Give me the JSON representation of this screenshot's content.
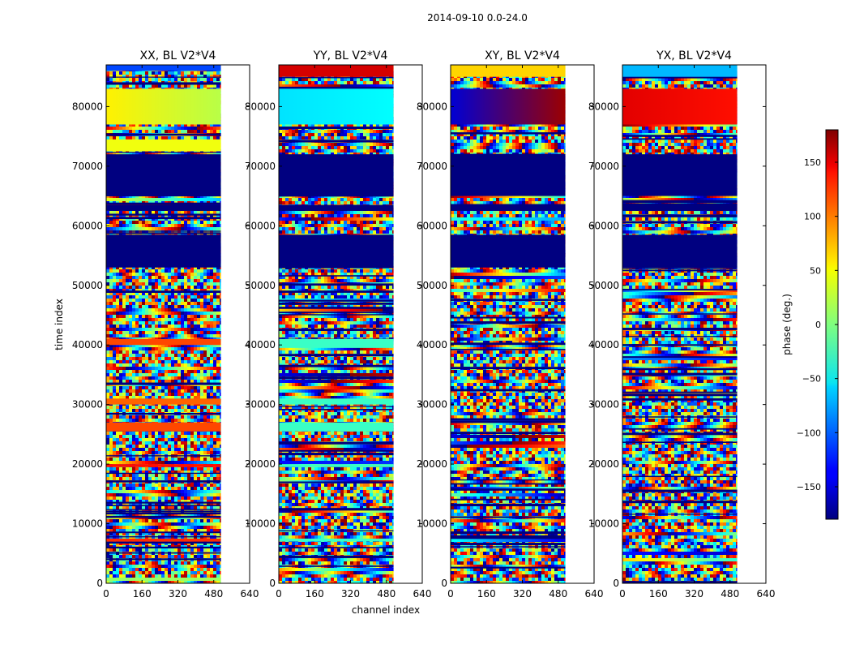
{
  "chart_data": {
    "type": "heatmap",
    "suptitle": "2014-09-10 0.0-24.0",
    "xlabel": "channel index",
    "ylabel": "time index",
    "xlim": [
      0,
      640
    ],
    "ylim": [
      0,
      87000
    ],
    "xticks": [
      "0",
      "160",
      "320",
      "480",
      "640"
    ],
    "yticks": [
      "0",
      "10000",
      "20000",
      "30000",
      "40000",
      "50000",
      "60000",
      "70000",
      "80000"
    ],
    "data_channel_max": 512,
    "colorbar": {
      "label": "phase (deg.)",
      "range": [
        -180,
        180
      ],
      "ticks": [
        "150",
        "100",
        "50",
        "0",
        "−50",
        "−100",
        "−150"
      ],
      "colormap": "jet"
    },
    "panels": [
      {
        "title": "XX, BL V2*V4",
        "bands": [
          {
            "y0": 86000,
            "y1": 87000,
            "phase": -110
          },
          {
            "y0": 77000,
            "y1": 83000,
            "phase": 50,
            "gradient_to": 20
          },
          {
            "y0": 72500,
            "y1": 74500,
            "phase": 40
          },
          {
            "y0": 65000,
            "y1": 72000,
            "phase": -180
          },
          {
            "y0": 62500,
            "y1": 63500,
            "phase": -180
          },
          {
            "y0": 53000,
            "y1": 58500,
            "phase": -180
          },
          {
            "y0": 40000,
            "y1": 41000,
            "phase": 110
          },
          {
            "y0": 30000,
            "y1": 31000,
            "phase": 100
          },
          {
            "y0": 25500,
            "y1": 27000,
            "phase": 110
          },
          {
            "y0": 19500,
            "y1": 20000,
            "phase": 130
          },
          {
            "y0": 7000,
            "y1": 7500,
            "phase": 120
          }
        ]
      },
      {
        "title": "YY, BL V2*V4",
        "bands": [
          {
            "y0": 85000,
            "y1": 87000,
            "phase": 150
          },
          {
            "y0": 77000,
            "y1": 83000,
            "phase": -55,
            "gradient_to": -45
          },
          {
            "y0": 65000,
            "y1": 72000,
            "phase": -180
          },
          {
            "y0": 62500,
            "y1": 63500,
            "phase": -180
          },
          {
            "y0": 53000,
            "y1": 58500,
            "phase": -180
          },
          {
            "y0": 39500,
            "y1": 41000,
            "phase": -25
          },
          {
            "y0": 30000,
            "y1": 31000,
            "phase": -25
          },
          {
            "y0": 25500,
            "y1": 27000,
            "phase": -25
          },
          {
            "y0": 19500,
            "y1": 20000,
            "phase": -25
          },
          {
            "y0": 7000,
            "y1": 7500,
            "phase": -25
          }
        ]
      },
      {
        "title": "XY, BL V2*V4",
        "bands": [
          {
            "y0": 85000,
            "y1": 87000,
            "phase": 60
          },
          {
            "y0": 77000,
            "y1": 83000,
            "phase": -150,
            "gradient_to": 170
          },
          {
            "y0": 65000,
            "y1": 72000,
            "phase": -180
          },
          {
            "y0": 62500,
            "y1": 63500,
            "phase": -180
          },
          {
            "y0": 53000,
            "y1": 58500,
            "phase": -180
          }
        ]
      },
      {
        "title": "YX, BL V2*V4",
        "bands": [
          {
            "y0": 85000,
            "y1": 87000,
            "phase": -70
          },
          {
            "y0": 77000,
            "y1": 83000,
            "phase": 145,
            "gradient_to": 130
          },
          {
            "y0": 65000,
            "y1": 72000,
            "phase": -180
          },
          {
            "y0": 62500,
            "y1": 63500,
            "phase": -180
          },
          {
            "y0": 53000,
            "y1": 58500,
            "phase": -180
          }
        ]
      }
    ]
  }
}
